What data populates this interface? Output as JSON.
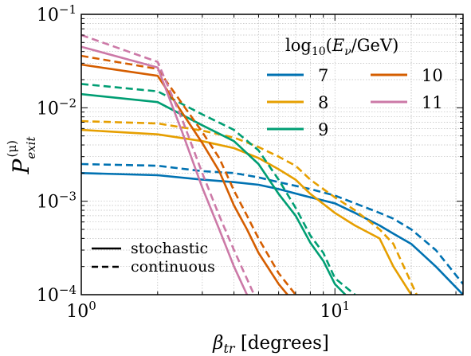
{
  "chart_data": {
    "type": "line",
    "title": "",
    "xlabel": "βtr [degrees]",
    "ylabel": "P_exit^(μ)",
    "xscale": "log",
    "yscale": "log",
    "xlim": [
      1,
      32
    ],
    "ylim": [
      0.0001,
      0.1
    ],
    "grid": true,
    "x_ticks": [
      "10^0",
      "10^1"
    ],
    "y_ticks": [
      "10^-4",
      "10^-3",
      "10^-2",
      "10^-1"
    ],
    "legend": {
      "title": "log10(Eν/GeV)",
      "placement": "top-right",
      "entries": [
        {
          "label": "7",
          "color": "#0072B2"
        },
        {
          "label": "8",
          "color": "#E69F00"
        },
        {
          "label": "9",
          "color": "#009E73"
        },
        {
          "label": "10",
          "color": "#D55E00"
        },
        {
          "label": "11",
          "color": "#CC79A7"
        }
      ]
    },
    "style_legend": {
      "placement": "bottom-left",
      "entries": [
        {
          "label": "stochastic",
          "dash": "solid"
        },
        {
          "label": "continuous",
          "dash": "dashed"
        }
      ]
    },
    "series": [
      {
        "name": "7",
        "style": "stochastic",
        "color": "#0072B2",
        "x": [
          1,
          2,
          3,
          4,
          5,
          6,
          8,
          10,
          12,
          15,
          17,
          20,
          25,
          32
        ],
        "y": [
          0.002,
          0.0019,
          0.0017,
          0.0016,
          0.0015,
          0.00135,
          0.0011,
          0.00095,
          0.00075,
          0.00055,
          0.00045,
          0.00035,
          0.0002,
          0.0001
        ]
      },
      {
        "name": "7",
        "style": "continuous",
        "color": "#0072B2",
        "x": [
          1,
          2,
          3,
          4,
          5,
          6,
          8,
          10,
          12,
          15,
          17,
          20,
          25,
          32
        ],
        "y": [
          0.0025,
          0.0024,
          0.0021,
          0.002,
          0.0018,
          0.0016,
          0.00135,
          0.00115,
          0.00095,
          0.00075,
          0.00065,
          0.0005,
          0.0003,
          0.00013
        ]
      },
      {
        "name": "8",
        "style": "stochastic",
        "color": "#E69F00",
        "x": [
          1,
          2,
          3,
          4,
          5,
          6,
          7,
          8,
          10,
          12,
          15,
          17,
          20
        ],
        "y": [
          0.0058,
          0.0052,
          0.0044,
          0.0037,
          0.0029,
          0.0022,
          0.0017,
          0.0012,
          0.00075,
          0.00055,
          0.0004,
          0.0002,
          0.0001
        ]
      },
      {
        "name": "8",
        "style": "continuous",
        "color": "#E69F00",
        "x": [
          1,
          2,
          3,
          4,
          5,
          6,
          7,
          8,
          10,
          12,
          15,
          17,
          21
        ],
        "y": [
          0.0072,
          0.0068,
          0.0057,
          0.0048,
          0.0038,
          0.003,
          0.0024,
          0.0017,
          0.0011,
          0.0008,
          0.0005,
          0.00035,
          0.0001
        ]
      },
      {
        "name": "9",
        "style": "stochastic",
        "color": "#009E73",
        "x": [
          1,
          2,
          3,
          4,
          5,
          6,
          7,
          8,
          9,
          10,
          11
        ],
        "y": [
          0.014,
          0.0115,
          0.0065,
          0.0044,
          0.0025,
          0.0012,
          0.0007,
          0.00036,
          0.00023,
          0.00013,
          0.0001
        ]
      },
      {
        "name": "9",
        "style": "continuous",
        "color": "#009E73",
        "x": [
          1,
          2,
          3,
          4,
          5,
          6,
          7,
          8,
          9,
          10,
          12
        ],
        "y": [
          0.018,
          0.015,
          0.0085,
          0.0058,
          0.0035,
          0.0017,
          0.00085,
          0.00043,
          0.00028,
          0.00015,
          0.0001
        ]
      },
      {
        "name": "10",
        "style": "stochastic",
        "color": "#D55E00",
        "x": [
          1,
          2,
          3,
          3.5,
          4,
          4.5,
          5,
          6,
          6.5
        ],
        "y": [
          0.029,
          0.022,
          0.0042,
          0.0021,
          0.0009,
          0.0005,
          0.00028,
          0.00013,
          0.0001
        ]
      },
      {
        "name": "10",
        "style": "continuous",
        "color": "#D55E00",
        "x": [
          1,
          2,
          3,
          3.5,
          4,
          4.5,
          5,
          6,
          7
        ],
        "y": [
          0.036,
          0.026,
          0.0055,
          0.0029,
          0.0013,
          0.0007,
          0.0004,
          0.00017,
          0.0001
        ]
      },
      {
        "name": "11",
        "style": "stochastic",
        "color": "#CC79A7",
        "x": [
          1,
          2,
          2.5,
          3,
          3.5,
          4,
          4.5
        ],
        "y": [
          0.045,
          0.027,
          0.0055,
          0.0014,
          0.0005,
          0.0002,
          0.0001
        ]
      },
      {
        "name": "11",
        "style": "continuous",
        "color": "#CC79A7",
        "x": [
          1,
          2,
          2.5,
          3,
          3.5,
          4,
          4.8
        ],
        "y": [
          0.06,
          0.031,
          0.0075,
          0.002,
          0.0007,
          0.0003,
          0.0001
        ]
      }
    ]
  }
}
